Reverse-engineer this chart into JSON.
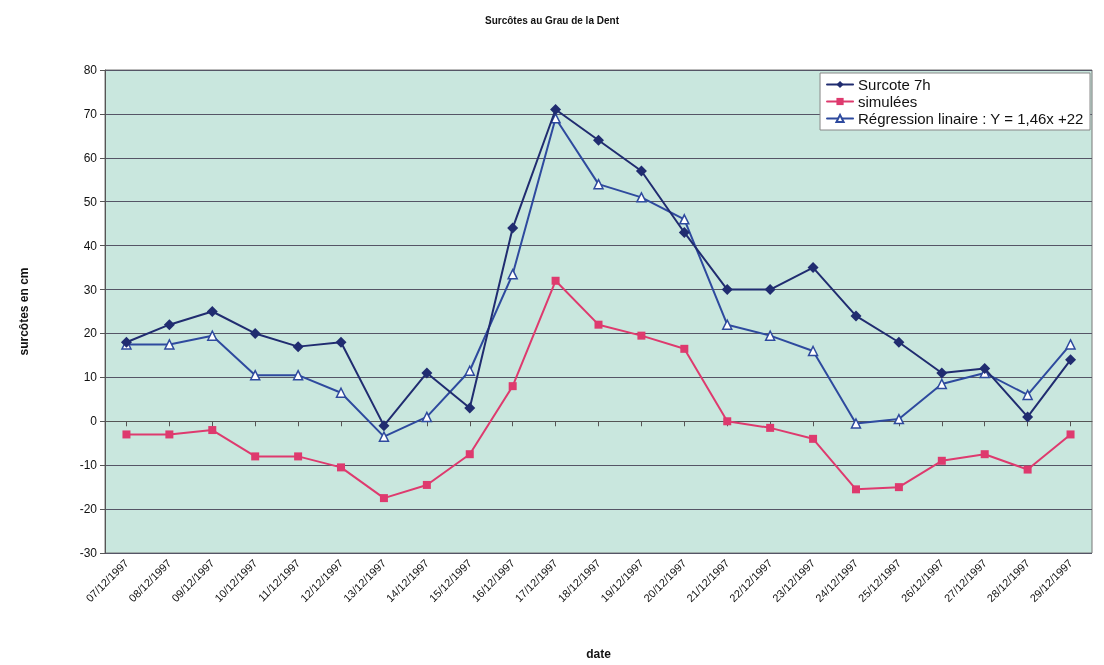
{
  "chart_data": {
    "type": "line",
    "title": "Surcôtes au Grau de la Dent",
    "xlabel": "date",
    "ylabel": "surcôtes en cm",
    "categories": [
      "07/12/1997",
      "08/12/1997",
      "09/12/1997",
      "10/12/1997",
      "11/12/1997",
      "12/12/1997",
      "13/12/1997",
      "14/12/1997",
      "15/12/1997",
      "16/12/1997",
      "17/12/1997",
      "18/12/1997",
      "19/12/1997",
      "20/12/1997",
      "21/12/1997",
      "22/12/1997",
      "23/12/1997",
      "24/12/1997",
      "25/12/1997",
      "26/12/1997",
      "27/12/1997",
      "28/12/1997",
      "29/12/1997"
    ],
    "series": [
      {
        "name": "Surcote 7h",
        "color": "#202c70",
        "marker": "diamond",
        "values": [
          18,
          22,
          25,
          20,
          17,
          18,
          -1,
          11,
          3,
          44,
          71,
          64,
          57,
          43,
          30,
          30,
          35,
          24,
          18,
          11,
          12,
          1,
          14
        ]
      },
      {
        "name": "simulées",
        "color": "#de3a6e",
        "marker": "square",
        "values": [
          -3,
          -3,
          -2,
          -8,
          -8,
          -10.5,
          -17.5,
          -14.5,
          -7.5,
          8,
          32,
          22,
          19.5,
          16.5,
          0,
          -1.5,
          -4,
          -15.5,
          -15,
          -9,
          -7.5,
          -11,
          -3
        ]
      },
      {
        "name": "Régression linaire : Y = 1,46x +22",
        "color": "#2e4a9e",
        "marker": "triangle",
        "values": [
          17.5,
          17.5,
          19.5,
          10.5,
          10.5,
          6.5,
          -3.5,
          1,
          11.5,
          33.5,
          69,
          54,
          51,
          46,
          22,
          19.5,
          16,
          -0.5,
          0.5,
          8.5,
          11,
          6,
          17.5
        ]
      }
    ],
    "ylim": [
      -30,
      80
    ],
    "yticks": [
      -30,
      -20,
      -10,
      0,
      10,
      20,
      30,
      40,
      50,
      60,
      70,
      80
    ],
    "grid": "y",
    "legend": "top right",
    "line_style": "solid"
  }
}
